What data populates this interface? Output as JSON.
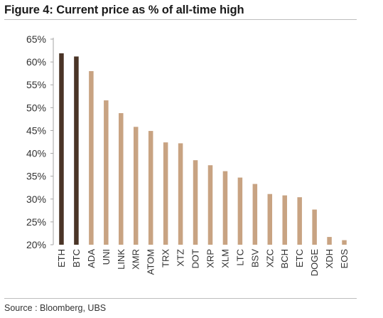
{
  "title": "Figure 4: Current price as % of all-time high",
  "source": "Source : Bloomberg, UBS",
  "chart_data": {
    "type": "bar",
    "title": "Figure 4: Current price as % of all-time high",
    "xlabel": "",
    "ylabel": "",
    "ylim": [
      20,
      65
    ],
    "yticks": [
      20,
      25,
      30,
      35,
      40,
      45,
      50,
      55,
      60,
      65
    ],
    "ytick_labels": [
      "20%",
      "25%",
      "30%",
      "35%",
      "40%",
      "45%",
      "50%",
      "55%",
      "60%",
      "65%"
    ],
    "grid": false,
    "categories": [
      "ETH",
      "BTC",
      "ADA",
      "UNI",
      "LINK",
      "XMR",
      "ATOM",
      "TRX",
      "XTZ",
      "DOT",
      "XRP",
      "XLM",
      "LTC",
      "BSV",
      "XZC",
      "BCH",
      "ETC",
      "DOGE",
      "XDH",
      "EOS"
    ],
    "values": [
      61.9,
      61.2,
      58.0,
      51.6,
      48.8,
      45.8,
      44.9,
      42.4,
      42.2,
      38.5,
      37.4,
      36.1,
      34.7,
      33.3,
      31.1,
      30.8,
      30.4,
      27.7,
      21.7,
      21.0
    ],
    "colors": [
      "#4a3426",
      "#4a3426",
      "#c8a382",
      "#c8a382",
      "#c8a382",
      "#c8a382",
      "#c8a382",
      "#c8a382",
      "#c8a382",
      "#c8a382",
      "#c8a382",
      "#c8a382",
      "#c8a382",
      "#c8a382",
      "#c8a382",
      "#c8a382",
      "#c8a382",
      "#c8a382",
      "#c8a382",
      "#c8a382"
    ]
  }
}
